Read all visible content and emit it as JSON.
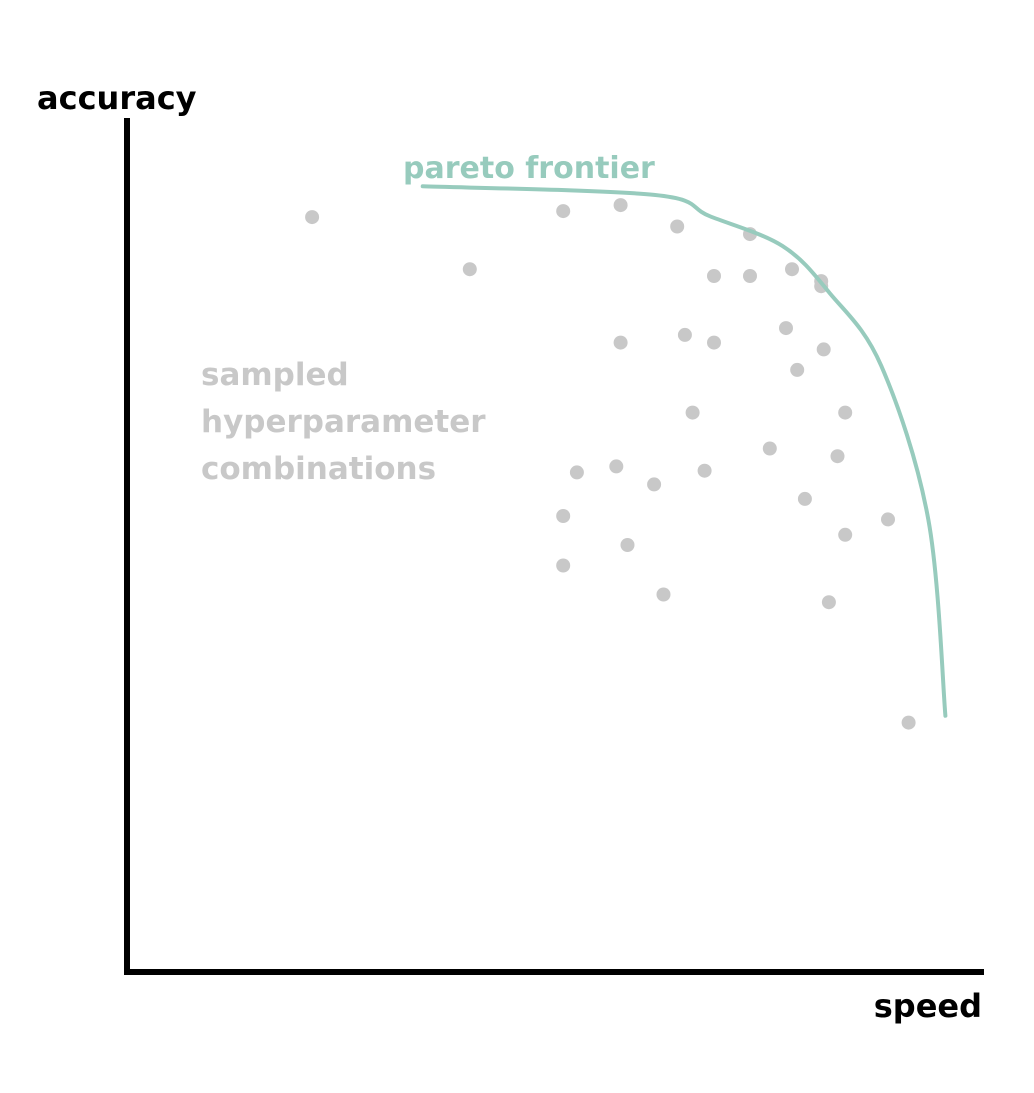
{
  "chart_data": {
    "type": "scatter",
    "title": "",
    "xlabel": "speed",
    "ylabel": "accuracy",
    "xlim": [
      0,
      100
    ],
    "ylim": [
      0,
      100
    ],
    "grid": false,
    "ticks": false,
    "frontier": {
      "label": "pareto frontier",
      "color": "#97cbbd",
      "points": [
        {
          "x": 34.5,
          "y": 92.0
        },
        {
          "x": 61.5,
          "y": 91.0
        },
        {
          "x": 68.0,
          "y": 88.5
        },
        {
          "x": 76.5,
          "y": 85.0
        },
        {
          "x": 82.0,
          "y": 79.5
        },
        {
          "x": 88.0,
          "y": 71.0
        },
        {
          "x": 93.5,
          "y": 53.0
        },
        {
          "x": 95.5,
          "y": 30.0
        }
      ]
    },
    "samples": {
      "label_lines": [
        "sampled",
        "hyperparameter",
        "combinations"
      ],
      "color": "#c8c8c8",
      "points": [
        {
          "x": 21.6,
          "y": 88.4
        },
        {
          "x": 40.0,
          "y": 82.3
        },
        {
          "x": 50.9,
          "y": 89.1
        },
        {
          "x": 57.6,
          "y": 89.8
        },
        {
          "x": 64.2,
          "y": 87.3
        },
        {
          "x": 72.7,
          "y": 86.4
        },
        {
          "x": 68.5,
          "y": 81.5
        },
        {
          "x": 72.7,
          "y": 81.5
        },
        {
          "x": 77.6,
          "y": 82.3
        },
        {
          "x": 81.0,
          "y": 80.9
        },
        {
          "x": 81.0,
          "y": 80.3
        },
        {
          "x": 57.6,
          "y": 73.7
        },
        {
          "x": 65.1,
          "y": 74.6
        },
        {
          "x": 68.5,
          "y": 73.7
        },
        {
          "x": 76.9,
          "y": 75.4
        },
        {
          "x": 81.3,
          "y": 72.9
        },
        {
          "x": 78.2,
          "y": 70.5
        },
        {
          "x": 66.0,
          "y": 65.5
        },
        {
          "x": 83.8,
          "y": 65.5
        },
        {
          "x": 52.5,
          "y": 58.5
        },
        {
          "x": 57.1,
          "y": 59.2
        },
        {
          "x": 67.4,
          "y": 58.7
        },
        {
          "x": 61.5,
          "y": 57.1
        },
        {
          "x": 75.0,
          "y": 61.3
        },
        {
          "x": 82.9,
          "y": 60.4
        },
        {
          "x": 50.9,
          "y": 53.4
        },
        {
          "x": 79.1,
          "y": 55.4
        },
        {
          "x": 88.8,
          "y": 53.0
        },
        {
          "x": 83.8,
          "y": 51.2
        },
        {
          "x": 58.4,
          "y": 50.0
        },
        {
          "x": 50.9,
          "y": 47.6
        },
        {
          "x": 62.6,
          "y": 44.2
        },
        {
          "x": 81.9,
          "y": 43.3
        },
        {
          "x": 91.2,
          "y": 29.2
        }
      ]
    }
  }
}
